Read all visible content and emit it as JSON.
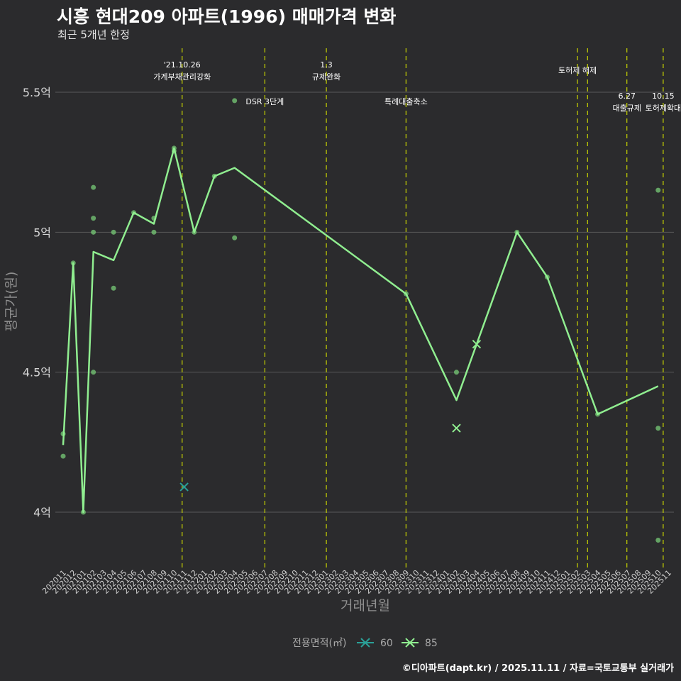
{
  "header": {
    "title": "시흥 현대209 아파트(1996) 매매가격 변화",
    "subtitle": "최근 5개년 한정"
  },
  "footer": {
    "credit": "©디아파트(dapt.kr) / 2025.11.11 / 자료=국토교통부 실거래가"
  },
  "colors": {
    "background": "#2b2b2d",
    "grid": "#5a5a5a",
    "event_line": "#c8d400",
    "series_85": "#90ee90",
    "series_60": "#2aa198",
    "points": "#6fb86f"
  },
  "chart_data": {
    "type": "line",
    "xlabel": "거래년월",
    "ylabel": "평균가(원)",
    "ylim": [
      3.82,
      5.7
    ],
    "y_ticks": [
      {
        "value": 4.0,
        "label": "4억"
      },
      {
        "value": 4.5,
        "label": "4.5억"
      },
      {
        "value": 5.0,
        "label": "5억"
      },
      {
        "value": 5.5,
        "label": "5.5억"
      }
    ],
    "months": [
      "202011",
      "202012",
      "202101",
      "202102",
      "202103",
      "202104",
      "202105",
      "202106",
      "202107",
      "202108",
      "202109",
      "202110",
      "202111",
      "202112",
      "202201",
      "202202",
      "202203",
      "202204",
      "202205",
      "202206",
      "202207",
      "202208",
      "202209",
      "202210",
      "202211",
      "202212",
      "202301",
      "202302",
      "202303",
      "202304",
      "202305",
      "202306",
      "202307",
      "202308",
      "202309",
      "202310",
      "202311",
      "202312",
      "202401",
      "202402",
      "202403",
      "202404",
      "202405",
      "202406",
      "202407",
      "202408",
      "202409",
      "202410",
      "202411",
      "202412",
      "202501",
      "202502",
      "202503",
      "202504",
      "202505",
      "202506",
      "202507",
      "202508",
      "202509",
      "202510",
      "202511"
    ],
    "legend": {
      "title": "전용면적(㎡)",
      "items": [
        {
          "name": "60",
          "color": "#2aa198"
        },
        {
          "name": "85",
          "color": "#90ee90"
        }
      ]
    },
    "series": [
      {
        "name": "85",
        "line": [
          [
            "202011",
            4.24
          ],
          [
            "202012",
            4.89
          ],
          [
            "202101",
            4.0
          ],
          [
            "202102",
            4.93
          ],
          [
            "202104",
            4.9
          ],
          [
            "202106",
            5.07
          ],
          [
            "202108",
            5.03
          ],
          [
            "202110",
            5.3
          ],
          [
            "202112",
            5.0
          ],
          [
            "202202",
            5.2
          ],
          [
            "202204",
            5.23
          ],
          [
            "202309",
            4.78
          ],
          [
            "202402",
            4.4
          ],
          [
            "202404",
            4.6
          ],
          [
            "202408",
            5.0
          ],
          [
            "202411",
            4.84
          ],
          [
            "202504",
            4.35
          ],
          [
            "202510",
            4.45
          ]
        ],
        "points": [
          [
            "202011",
            4.28
          ],
          [
            "202011",
            4.2
          ],
          [
            "202012",
            4.89
          ],
          [
            "202101",
            4.0
          ],
          [
            "202102",
            5.16
          ],
          [
            "202102",
            5.05
          ],
          [
            "202102",
            5.0
          ],
          [
            "202102",
            4.5
          ],
          [
            "202104",
            5.0
          ],
          [
            "202104",
            4.8
          ],
          [
            "202106",
            5.07
          ],
          [
            "202108",
            5.05
          ],
          [
            "202108",
            5.0
          ],
          [
            "202110",
            5.3
          ],
          [
            "202110",
            5.29
          ],
          [
            "202112",
            5.0
          ],
          [
            "202202",
            5.2
          ],
          [
            "202204",
            5.47
          ],
          [
            "202204",
            4.98
          ],
          [
            "202309",
            4.78
          ],
          [
            "202402",
            4.5
          ],
          [
            "202408",
            5.0
          ],
          [
            "202411",
            4.84
          ],
          [
            "202504",
            4.35
          ],
          [
            "202510",
            5.15
          ],
          [
            "202510",
            4.3
          ],
          [
            "202510",
            3.9
          ]
        ],
        "crosses": [
          [
            "202402",
            4.3
          ],
          [
            "202404",
            4.6
          ]
        ]
      },
      {
        "name": "60",
        "line": [],
        "points": [],
        "crosses": [
          [
            "202111",
            4.09
          ]
        ]
      }
    ],
    "events": [
      {
        "date": "'21.10.26",
        "label": "가계부채관리강화",
        "month": "202110",
        "offset": 0.8,
        "tier": "top"
      },
      {
        "date": "",
        "label": "DSR 3단계",
        "month": "202207",
        "offset": 0,
        "tier": "mid"
      },
      {
        "date": "1.3",
        "label": "규제완화",
        "month": "202301",
        "offset": 0.1,
        "tier": "top"
      },
      {
        "date": "",
        "label": "특례대출축소",
        "month": "202309",
        "offset": 0,
        "tier": "mid"
      },
      {
        "date": "",
        "label": "토허제 해제",
        "month": "202502",
        "offset": 0,
        "tier": "upper"
      },
      {
        "date": "",
        "label": "",
        "month": "202503",
        "offset": 0,
        "tier": "none"
      },
      {
        "date": "6.27",
        "label": "대출규제",
        "month": "202506",
        "offset": 0.9,
        "tier": "low"
      },
      {
        "date": "10.15",
        "label": "토허제확대",
        "month": "202510",
        "offset": 0.5,
        "tier": "low"
      }
    ]
  }
}
